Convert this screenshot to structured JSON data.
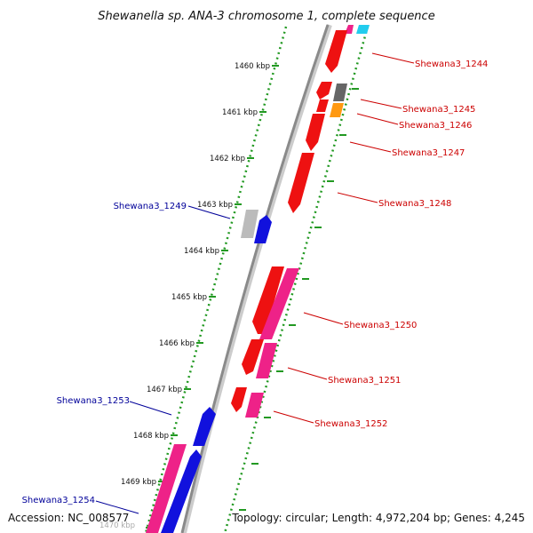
{
  "title": "Shewanella sp. ANA-3 chromosome 1, complete sequence",
  "footer": {
    "accession": "Accession: NC_008577",
    "topology": "Topology: circular; Length: 4,972,204 bp; Genes: 4,245"
  },
  "kbp_ticks": [
    "1460 kbp",
    "1461 kbp",
    "1462 kbp",
    "1463 kbp",
    "1464 kbp",
    "1465 kbp",
    "1466 kbp",
    "1467 kbp",
    "1468 kbp",
    "1469 kbp",
    "1470 kbp"
  ],
  "colors": {
    "red": "#ee1111",
    "pink": "#ee2288",
    "blue": "#1111dd",
    "gray_dark": "#666666",
    "gray_light": "#bbbbbb",
    "orange": "#ff9911",
    "cyan": "#22ccee",
    "backbone": "#888888",
    "dotted_axis": "#229922",
    "label_forward": "#cc0000",
    "label_reverse": "#000099"
  },
  "gene_labels": [
    {
      "name": "Shewana3_1244",
      "strand": "forward"
    },
    {
      "name": "Shewana3_1245",
      "strand": "forward"
    },
    {
      "name": "Shewana3_1246",
      "strand": "forward"
    },
    {
      "name": "Shewana3_1247",
      "strand": "forward"
    },
    {
      "name": "Shewana3_1248",
      "strand": "forward"
    },
    {
      "name": "Shewana3_1249",
      "strand": "reverse"
    },
    {
      "name": "Shewana3_1250",
      "strand": "forward"
    },
    {
      "name": "Shewana3_1251",
      "strand": "forward"
    },
    {
      "name": "Shewana3_1252",
      "strand": "forward"
    },
    {
      "name": "Shewana3_1253",
      "strand": "reverse"
    },
    {
      "name": "Shewana3_1254",
      "strand": "reverse"
    }
  ]
}
